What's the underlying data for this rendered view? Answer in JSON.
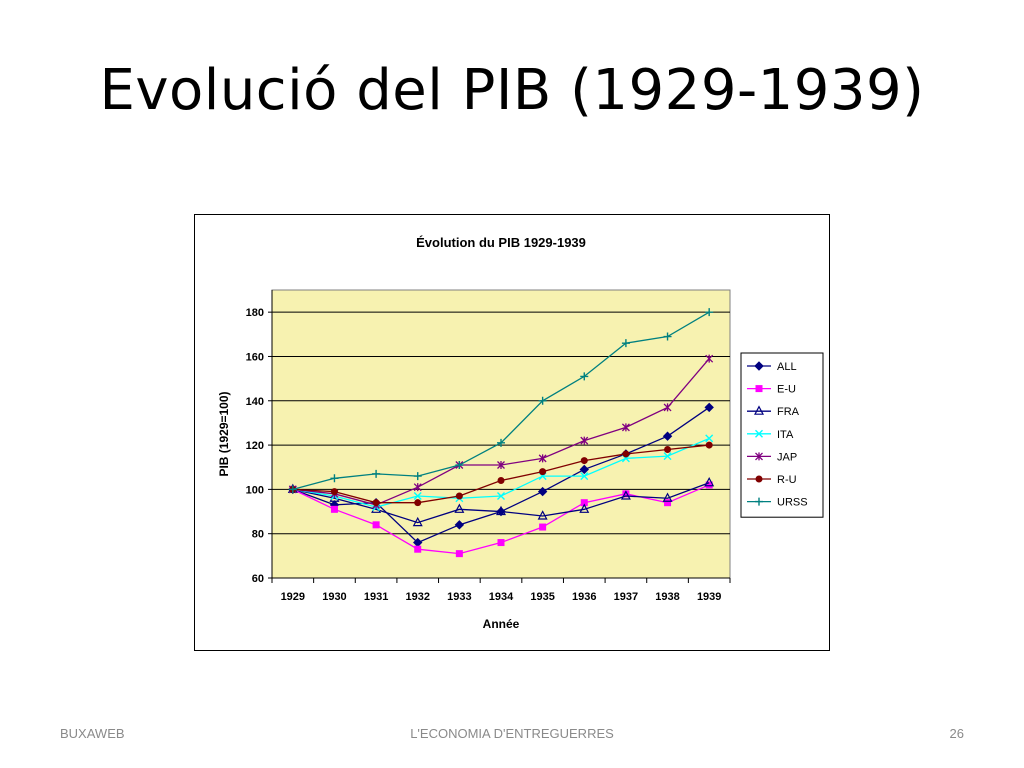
{
  "slide": {
    "title": "Evolució del PIB (1929-1939)",
    "footer_left": "BUXAWEB",
    "footer_center": "L'ECONOMIA D'ENTREGUERRES",
    "footer_right": "26"
  },
  "chart_data": {
    "type": "line",
    "title": "Évolution du PIB 1929-1939",
    "xlabel": "Année",
    "ylabel": "PIB (1929=100)",
    "ylim": [
      60,
      190
    ],
    "yticks": [
      60,
      80,
      100,
      120,
      140,
      160,
      180
    ],
    "grid": true,
    "legend_position": "right",
    "plot_background": "#f7f2b0",
    "categories": [
      "1929",
      "1930",
      "1931",
      "1932",
      "1933",
      "1934",
      "1935",
      "1936",
      "1937",
      "1938",
      "1939"
    ],
    "series": [
      {
        "name": "ALL",
        "color": "#000080",
        "marker": "diamond",
        "values": [
          100,
          93,
          94,
          76,
          84,
          90,
          99,
          109,
          116,
          124,
          137
        ]
      },
      {
        "name": "E-U",
        "color": "#ff00ff",
        "marker": "square",
        "values": [
          100,
          91,
          84,
          73,
          71,
          76,
          83,
          94,
          98,
          94,
          102
        ]
      },
      {
        "name": "FRA",
        "color": "#000080",
        "marker": "triangle",
        "values": [
          100,
          96,
          91,
          85,
          91,
          90,
          88,
          91,
          97,
          96,
          103
        ]
      },
      {
        "name": "ITA",
        "color": "#00ffff",
        "marker": "x",
        "values": [
          100,
          97,
          92,
          97,
          96,
          97,
          106,
          106,
          114,
          115,
          123
        ]
      },
      {
        "name": "JAP",
        "color": "#800080",
        "marker": "star",
        "values": [
          100,
          98,
          93,
          101,
          111,
          111,
          114,
          122,
          128,
          137,
          159
        ]
      },
      {
        "name": "R-U",
        "color": "#800000",
        "marker": "circle",
        "values": [
          100,
          99,
          94,
          94,
          97,
          104,
          108,
          113,
          116,
          118,
          120
        ]
      },
      {
        "name": "URSS",
        "color": "#008080",
        "marker": "plus",
        "values": [
          100,
          105,
          107,
          106,
          111,
          121,
          140,
          151,
          166,
          169,
          180
        ]
      }
    ]
  }
}
